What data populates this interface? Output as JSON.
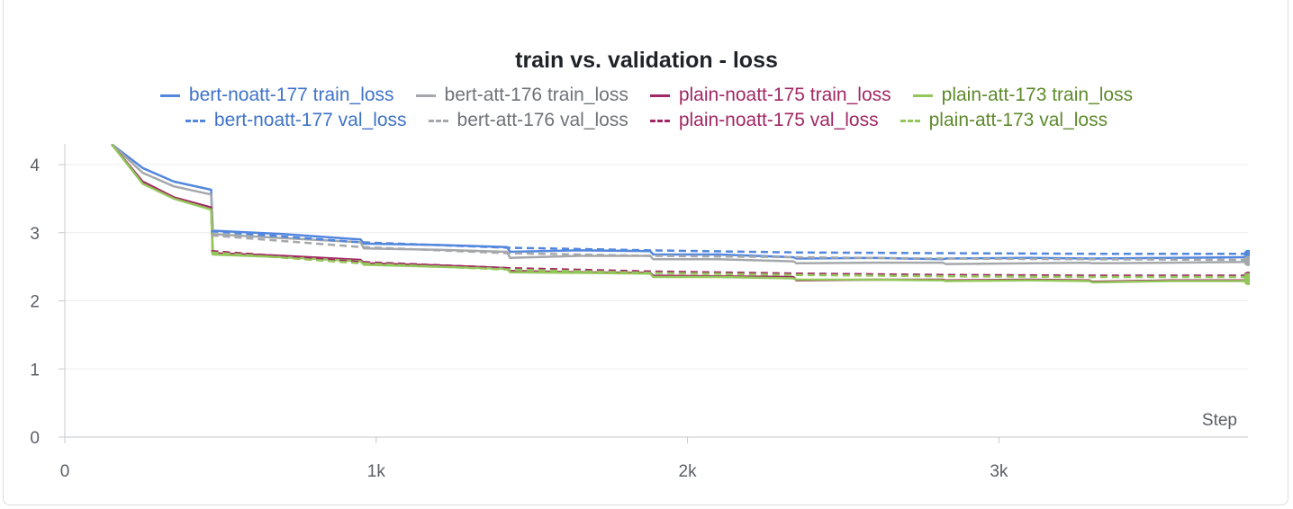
{
  "chart_data": {
    "type": "line",
    "title": "train vs. validation - loss",
    "xlabel": "Step",
    "ylabel": "",
    "xlim": [
      0,
      3800
    ],
    "ylim": [
      0,
      4
    ],
    "x_ticks": [
      0,
      1000,
      2000,
      3000
    ],
    "x_tick_labels": [
      "0",
      "1k",
      "2k",
      "3k"
    ],
    "y_ticks": [
      0,
      1,
      2,
      3,
      4
    ],
    "y_tick_labels": [
      "0",
      "1",
      "2",
      "3",
      "4"
    ],
    "grid": true,
    "legend_position": "top",
    "series": [
      {
        "name": "bert-noatt-177 train_loss",
        "color": "#5387dd",
        "dash": false,
        "x": [
          150,
          250,
          350,
          470,
          475,
          700,
          950,
          960,
          1200,
          1420,
          1430,
          1650,
          1880,
          1890,
          2100,
          2340,
          2350,
          2600,
          2820,
          2830,
          3100,
          3290,
          3300,
          3550,
          3800
        ],
        "y": [
          4.3,
          3.95,
          3.75,
          3.63,
          3.03,
          2.98,
          2.9,
          2.84,
          2.82,
          2.79,
          2.72,
          2.74,
          2.73,
          2.68,
          2.68,
          2.64,
          2.62,
          2.63,
          2.61,
          2.62,
          2.63,
          2.62,
          2.62,
          2.63,
          2.64
        ]
      },
      {
        "name": "bert-att-176 train_loss",
        "color": "#a5a8ab",
        "dash": false,
        "x": [
          150,
          250,
          350,
          470,
          475,
          700,
          950,
          960,
          1200,
          1420,
          1430,
          1650,
          1880,
          1890,
          2100,
          2340,
          2350,
          2600,
          2820,
          2830,
          3100,
          3290,
          3300,
          3550,
          3800
        ],
        "y": [
          4.3,
          3.88,
          3.68,
          3.56,
          2.98,
          2.92,
          2.86,
          2.77,
          2.75,
          2.72,
          2.63,
          2.66,
          2.66,
          2.61,
          2.61,
          2.58,
          2.55,
          2.56,
          2.56,
          2.54,
          2.55,
          2.56,
          2.55,
          2.56,
          2.57
        ]
      },
      {
        "name": "plain-noatt-175 train_loss",
        "color": "#a12864",
        "dash": false,
        "x": [
          150,
          250,
          350,
          470,
          475,
          700,
          950,
          960,
          1200,
          1420,
          1430,
          1650,
          1880,
          1890,
          2100,
          2340,
          2350,
          2600,
          2820,
          2830,
          3100,
          3290,
          3300,
          3550,
          3800
        ],
        "y": [
          4.3,
          3.75,
          3.52,
          3.37,
          2.7,
          2.66,
          2.6,
          2.55,
          2.52,
          2.48,
          2.44,
          2.42,
          2.41,
          2.37,
          2.36,
          2.35,
          2.3,
          2.31,
          2.31,
          2.3,
          2.31,
          2.3,
          2.28,
          2.3,
          2.3
        ]
      },
      {
        "name": "plain-att-173 train_loss",
        "color": "#93c75b",
        "dash": false,
        "x": [
          150,
          250,
          350,
          470,
          475,
          700,
          950,
          960,
          1200,
          1420,
          1430,
          1650,
          1880,
          1890,
          2100,
          2340,
          2350,
          2600,
          2820,
          2830,
          3100,
          3290,
          3300,
          3550,
          3800
        ],
        "y": [
          4.3,
          3.72,
          3.5,
          3.34,
          2.68,
          2.64,
          2.58,
          2.53,
          2.5,
          2.47,
          2.42,
          2.41,
          2.4,
          2.35,
          2.35,
          2.33,
          2.31,
          2.31,
          2.3,
          2.29,
          2.3,
          2.29,
          2.27,
          2.29,
          2.29
        ]
      },
      {
        "name": "bert-noatt-177 val_loss",
        "color": "#5387dd",
        "dash": true,
        "x": [
          470,
          950,
          1420,
          1880,
          2340,
          2820,
          3290,
          3800
        ],
        "y": [
          3.02,
          2.86,
          2.78,
          2.74,
          2.71,
          2.7,
          2.69,
          2.69
        ]
      },
      {
        "name": "bert-att-176 val_loss",
        "color": "#a5a8ab",
        "dash": true,
        "x": [
          470,
          950,
          1420,
          1880,
          2340,
          2820,
          3290,
          3800
        ],
        "y": [
          2.96,
          2.79,
          2.7,
          2.66,
          2.64,
          2.62,
          2.61,
          2.6
        ]
      },
      {
        "name": "plain-noatt-175 val_loss",
        "color": "#a12864",
        "dash": true,
        "x": [
          470,
          950,
          1420,
          1880,
          2340,
          2820,
          3290,
          3800
        ],
        "y": [
          2.73,
          2.57,
          2.48,
          2.43,
          2.4,
          2.38,
          2.37,
          2.37
        ]
      },
      {
        "name": "plain-att-173 val_loss",
        "color": "#93c75b",
        "dash": true,
        "x": [
          470,
          950,
          1420,
          1880,
          2340,
          2820,
          3290,
          3800
        ],
        "y": [
          2.71,
          2.55,
          2.46,
          2.41,
          2.38,
          2.36,
          2.35,
          2.35
        ]
      }
    ]
  },
  "legend": {
    "row1": [
      {
        "label": "bert-noatt-177 train_loss",
        "color": "#5387dd",
        "text_color": "#3f73c8",
        "dashed": false
      },
      {
        "label": "bert-att-176 train_loss",
        "color": "#a5a8ab",
        "text_color": "#6f7377",
        "dashed": false
      },
      {
        "label": "plain-noatt-175 train_loss",
        "color": "#a12864",
        "text_color": "#a12864",
        "dashed": false
      },
      {
        "label": "plain-att-173 train_loss",
        "color": "#93c75b",
        "text_color": "#5e8a2c",
        "dashed": false
      }
    ],
    "row2": [
      {
        "label": "bert-noatt-177 val_loss",
        "color": "#5387dd",
        "text_color": "#3f73c8",
        "dashed": true
      },
      {
        "label": "bert-att-176 val_loss",
        "color": "#a5a8ab",
        "text_color": "#6f7377",
        "dashed": true
      },
      {
        "label": "plain-noatt-175 val_loss",
        "color": "#a12864",
        "text_color": "#a12864",
        "dashed": true
      },
      {
        "label": "plain-att-173 val_loss",
        "color": "#93c75b",
        "text_color": "#5e8a2c",
        "dashed": true
      }
    ]
  }
}
